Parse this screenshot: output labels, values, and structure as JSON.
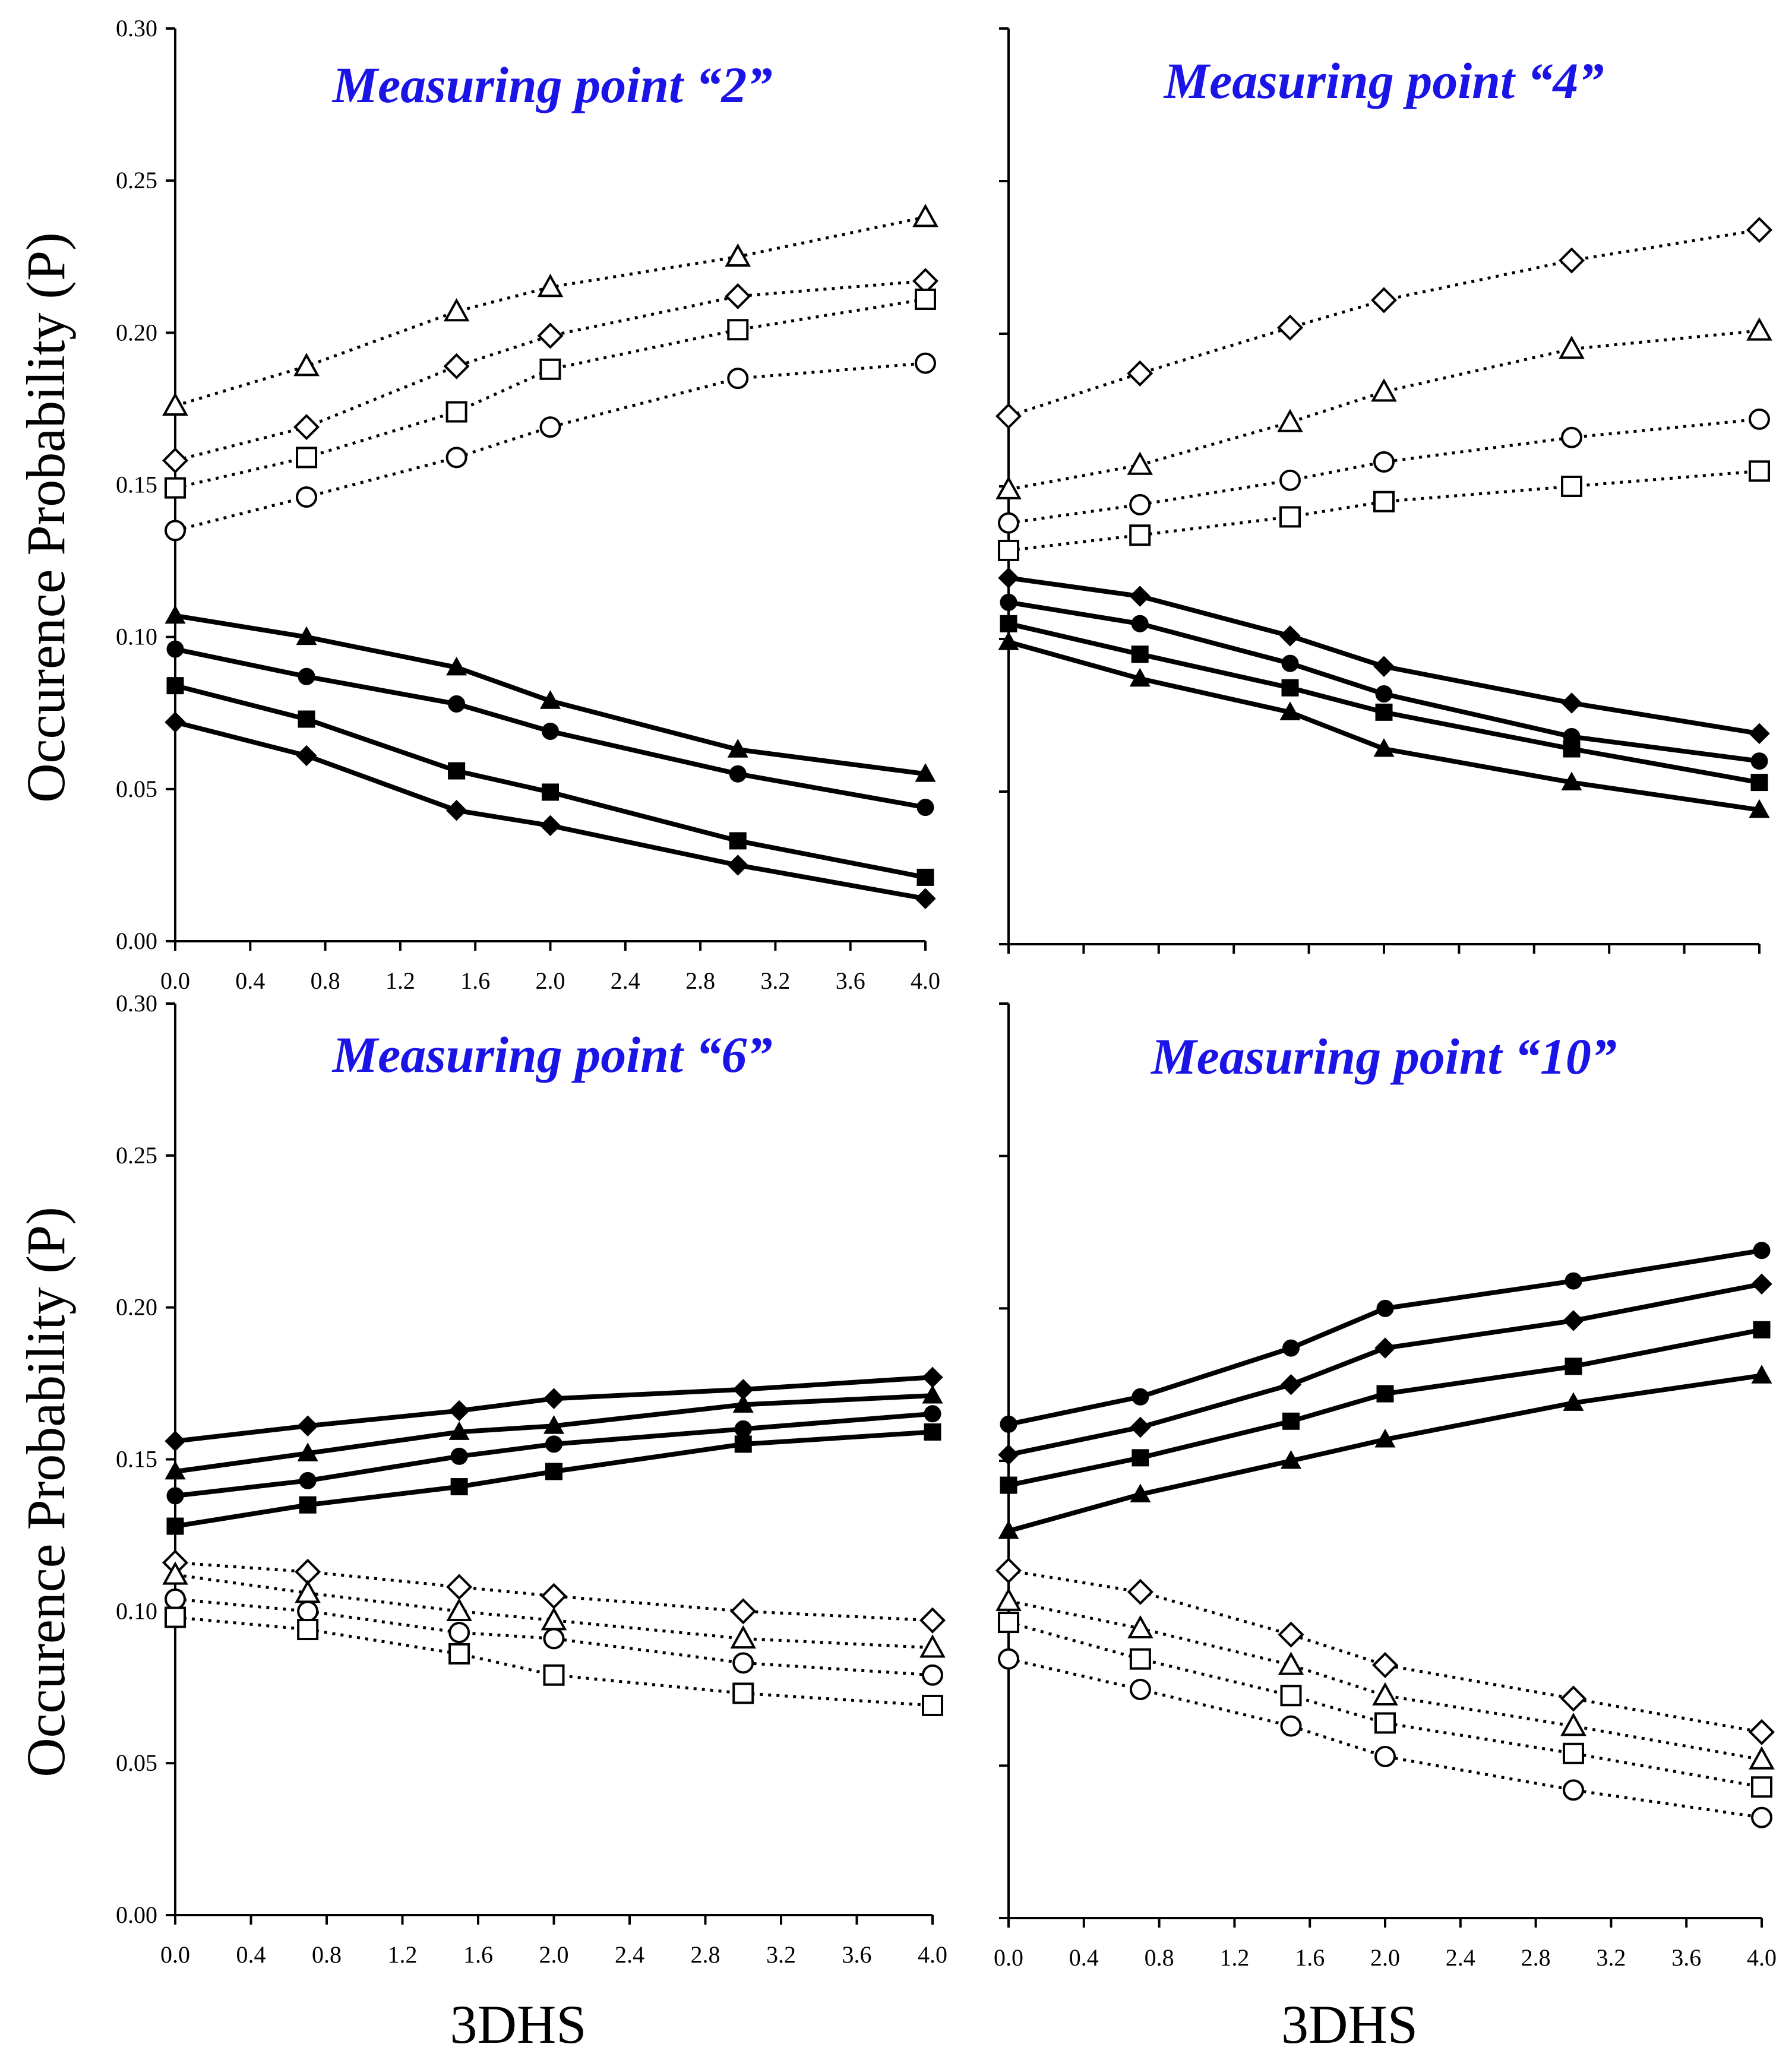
{
  "chart_data": [
    {
      "type": "line",
      "title": "Measuring point “2”",
      "xlabel": "3DHS",
      "ylabel": "Occurence Probability (P)",
      "xlim": [
        0.0,
        4.0
      ],
      "ylim": [
        0.0,
        0.3
      ],
      "xticks": [
        "0.0",
        "0.4",
        "0.8",
        "1.2",
        "1.6",
        "2.0",
        "2.4",
        "2.8",
        "3.2",
        "3.6",
        "4.0"
      ],
      "yticks": [
        "0.00",
        "0.05",
        "0.10",
        "0.15",
        "0.20",
        "0.25",
        "0.30"
      ],
      "x": [
        0.0,
        0.7,
        1.5,
        2.0,
        3.0,
        4.0
      ],
      "series": [
        {
          "name": "open triangle",
          "marker": "triangle",
          "filled": false,
          "style": "dotted",
          "values": [
            0.176,
            0.189,
            0.207,
            0.215,
            0.225,
            0.238
          ]
        },
        {
          "name": "open diamond",
          "marker": "diamond",
          "filled": false,
          "style": "dotted",
          "values": [
            0.158,
            0.169,
            0.189,
            0.199,
            0.212,
            0.217
          ]
        },
        {
          "name": "open square",
          "marker": "square",
          "filled": false,
          "style": "dotted",
          "values": [
            0.149,
            0.159,
            0.174,
            0.188,
            0.201,
            0.211
          ]
        },
        {
          "name": "open circle",
          "marker": "circle",
          "filled": false,
          "style": "dotted",
          "values": [
            0.135,
            0.146,
            0.159,
            0.169,
            0.185,
            0.19
          ]
        },
        {
          "name": "filled triangle",
          "marker": "triangle",
          "filled": true,
          "style": "solid",
          "values": [
            0.107,
            0.1,
            0.09,
            0.079,
            0.063,
            0.055
          ]
        },
        {
          "name": "filled circle",
          "marker": "circle",
          "filled": true,
          "style": "solid",
          "values": [
            0.096,
            0.087,
            0.078,
            0.069,
            0.055,
            0.044
          ]
        },
        {
          "name": "filled square",
          "marker": "square",
          "filled": true,
          "style": "solid",
          "values": [
            0.084,
            0.073,
            0.056,
            0.049,
            0.033,
            0.021
          ]
        },
        {
          "name": "filled diamond",
          "marker": "diamond",
          "filled": true,
          "style": "solid",
          "values": [
            0.072,
            0.061,
            0.043,
            0.038,
            0.025,
            0.014
          ]
        }
      ]
    },
    {
      "type": "line",
      "title": "Measuring point “4”",
      "xlabel": "3DHS",
      "ylabel": "Occurence Probability (P)",
      "xlim": [
        0.0,
        4.0
      ],
      "ylim": [
        0.0,
        0.3
      ],
      "x": [
        0.0,
        0.7,
        1.5,
        2.0,
        3.0,
        4.0
      ],
      "series": [
        {
          "name": "open diamond",
          "marker": "diamond",
          "filled": false,
          "style": "dotted",
          "values": [
            0.173,
            0.187,
            0.202,
            0.211,
            0.224,
            0.234
          ]
        },
        {
          "name": "open triangle",
          "marker": "triangle",
          "filled": false,
          "style": "dotted",
          "values": [
            0.149,
            0.157,
            0.171,
            0.181,
            0.195,
            0.201
          ]
        },
        {
          "name": "open circle",
          "marker": "circle",
          "filled": false,
          "style": "dotted",
          "values": [
            0.138,
            0.144,
            0.152,
            0.158,
            0.166,
            0.172
          ]
        },
        {
          "name": "open square",
          "marker": "square",
          "filled": false,
          "style": "dotted",
          "values": [
            0.129,
            0.134,
            0.14,
            0.145,
            0.15,
            0.155
          ]
        },
        {
          "name": "filled diamond",
          "marker": "diamond",
          "filled": true,
          "style": "solid",
          "values": [
            0.12,
            0.114,
            0.101,
            0.091,
            0.079,
            0.069
          ]
        },
        {
          "name": "filled circle",
          "marker": "circle",
          "filled": true,
          "style": "solid",
          "values": [
            0.112,
            0.105,
            0.092,
            0.082,
            0.068,
            0.06
          ]
        },
        {
          "name": "filled square",
          "marker": "square",
          "filled": true,
          "style": "solid",
          "values": [
            0.105,
            0.095,
            0.084,
            0.076,
            0.064,
            0.053
          ]
        },
        {
          "name": "filled triangle",
          "marker": "triangle",
          "filled": true,
          "style": "solid",
          "values": [
            0.099,
            0.087,
            0.076,
            0.064,
            0.053,
            0.044
          ]
        }
      ]
    },
    {
      "type": "line",
      "title": "Measuring point “6”",
      "xlabel": "3DHS",
      "ylabel": "Occurence Probability (P)",
      "xlim": [
        0.0,
        4.0
      ],
      "ylim": [
        0.0,
        0.3
      ],
      "xticks": [
        "0.0",
        "0.4",
        "0.8",
        "1.2",
        "1.6",
        "2.0",
        "2.4",
        "2.8",
        "3.2",
        "3.6",
        "4.0"
      ],
      "yticks": [
        "0.00",
        "0.05",
        "0.10",
        "0.15",
        "0.20",
        "0.25",
        "0.30"
      ],
      "x": [
        0.0,
        0.7,
        1.5,
        2.0,
        3.0,
        4.0
      ],
      "series": [
        {
          "name": "filled diamond",
          "marker": "diamond",
          "filled": true,
          "style": "solid",
          "values": [
            0.156,
            0.161,
            0.166,
            0.17,
            0.173,
            0.177
          ]
        },
        {
          "name": "filled triangle",
          "marker": "triangle",
          "filled": true,
          "style": "solid",
          "values": [
            0.146,
            0.152,
            0.159,
            0.161,
            0.168,
            0.171
          ]
        },
        {
          "name": "filled circle",
          "marker": "circle",
          "filled": true,
          "style": "solid",
          "values": [
            0.138,
            0.143,
            0.151,
            0.155,
            0.16,
            0.165
          ]
        },
        {
          "name": "filled square",
          "marker": "square",
          "filled": true,
          "style": "solid",
          "values": [
            0.128,
            0.135,
            0.141,
            0.146,
            0.155,
            0.159
          ]
        },
        {
          "name": "open diamond",
          "marker": "diamond",
          "filled": false,
          "style": "dotted",
          "values": [
            0.116,
            0.113,
            0.108,
            0.105,
            0.1,
            0.097
          ]
        },
        {
          "name": "open triangle",
          "marker": "triangle",
          "filled": false,
          "style": "dotted",
          "values": [
            0.112,
            0.106,
            0.1,
            0.097,
            0.091,
            0.088
          ]
        },
        {
          "name": "open circle",
          "marker": "circle",
          "filled": false,
          "style": "dotted",
          "values": [
            0.104,
            0.1,
            0.093,
            0.091,
            0.083,
            0.079
          ]
        },
        {
          "name": "open square",
          "marker": "square",
          "filled": false,
          "style": "dotted",
          "values": [
            0.098,
            0.094,
            0.086,
            0.079,
            0.073,
            0.069
          ]
        }
      ]
    },
    {
      "type": "line",
      "title": "Measuring point “10”",
      "xlabel": "3DHS",
      "ylabel": "Occurence Probability (P)",
      "xlim": [
        0.0,
        4.0
      ],
      "ylim": [
        0.0,
        0.3
      ],
      "xticks": [
        "0.0",
        "0.4",
        "0.8",
        "1.2",
        "1.6",
        "2.0",
        "2.4",
        "2.8",
        "3.2",
        "3.6",
        "4.0"
      ],
      "x": [
        0.0,
        0.7,
        1.5,
        2.0,
        3.0,
        4.0
      ],
      "series": [
        {
          "name": "filled circle",
          "marker": "circle",
          "filled": true,
          "style": "solid",
          "values": [
            0.162,
            0.171,
            0.187,
            0.2,
            0.209,
            0.219
          ]
        },
        {
          "name": "filled diamond",
          "marker": "diamond",
          "filled": true,
          "style": "solid",
          "values": [
            0.152,
            0.161,
            0.175,
            0.187,
            0.196,
            0.208
          ]
        },
        {
          "name": "filled square",
          "marker": "square",
          "filled": true,
          "style": "solid",
          "values": [
            0.142,
            0.151,
            0.163,
            0.172,
            0.181,
            0.193
          ]
        },
        {
          "name": "filled triangle",
          "marker": "triangle",
          "filled": true,
          "style": "solid",
          "values": [
            0.127,
            0.139,
            0.15,
            0.157,
            0.169,
            0.178
          ]
        },
        {
          "name": "open diamond",
          "marker": "diamond",
          "filled": false,
          "style": "dotted",
          "values": [
            0.114,
            0.107,
            0.093,
            0.083,
            0.072,
            0.061
          ]
        },
        {
          "name": "open triangle",
          "marker": "triangle",
          "filled": false,
          "style": "dotted",
          "values": [
            0.104,
            0.095,
            0.083,
            0.073,
            0.063,
            0.052
          ]
        },
        {
          "name": "open square",
          "marker": "square",
          "filled": false,
          "style": "dotted",
          "values": [
            0.097,
            0.085,
            0.073,
            0.064,
            0.054,
            0.043
          ]
        },
        {
          "name": "open circle",
          "marker": "circle",
          "filled": false,
          "style": "dotted",
          "values": [
            0.085,
            0.075,
            0.063,
            0.053,
            0.042,
            0.033
          ]
        }
      ]
    }
  ],
  "colors": {
    "title": "#1a14e6",
    "ink": "#000000"
  }
}
